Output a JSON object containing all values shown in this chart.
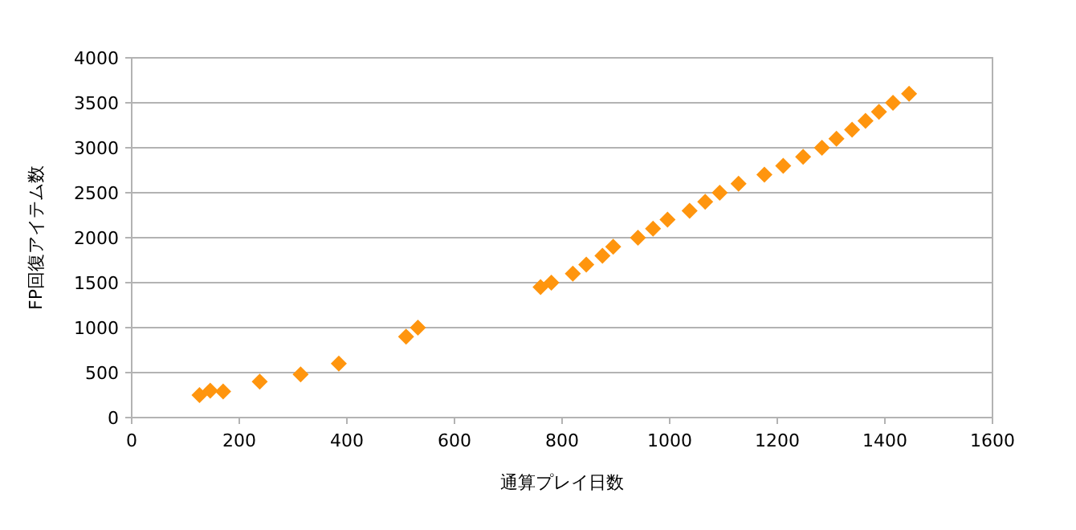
{
  "chart_data": {
    "type": "scatter",
    "xlabel": "通算プレイ日数",
    "ylabel": "FP回復アイテム数",
    "x": [
      126,
      146,
      170,
      238,
      314,
      385,
      510,
      532,
      760,
      780,
      820,
      845,
      875,
      895,
      941,
      969,
      996,
      1037,
      1066,
      1093,
      1128,
      1176,
      1211,
      1248,
      1283,
      1310,
      1339,
      1364,
      1389,
      1415,
      1445
    ],
    "series": [
      {
        "color": "#ff950e",
        "values": [
          250,
          300,
          290,
          400,
          480,
          600,
          900,
          1000,
          1450,
          1500,
          1600,
          1700,
          1800,
          1900,
          2000,
          2100,
          2200,
          2300,
          2400,
          2500,
          2600,
          2700,
          2800,
          2900,
          3000,
          3100,
          3200,
          3300,
          3400,
          3500,
          3600
        ]
      }
    ],
    "xlim": [
      0,
      1600
    ],
    "xticks": [
      0,
      200,
      400,
      600,
      800,
      1000,
      1200,
      1400,
      1600
    ],
    "ylim": [
      0,
      4000
    ],
    "yticks": [
      0,
      500,
      1000,
      1500,
      2000,
      2500,
      3000,
      3500,
      4000
    ],
    "grid": "y",
    "marker": "diamond"
  }
}
